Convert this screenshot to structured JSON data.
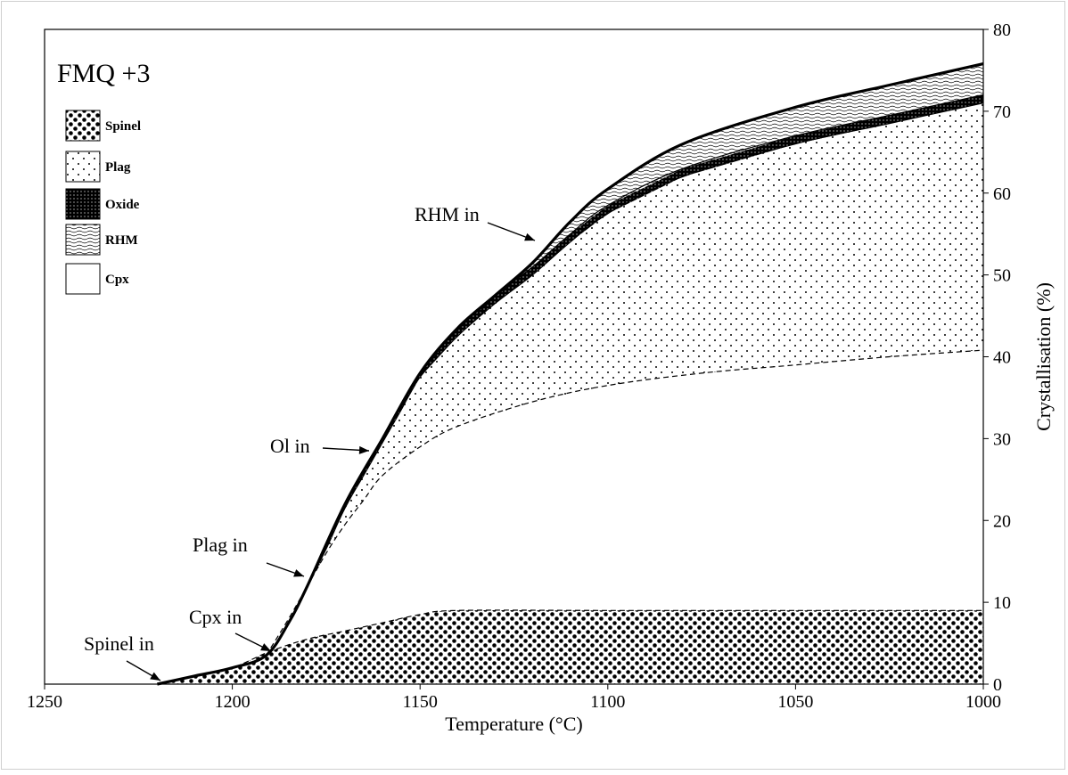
{
  "chart_data": {
    "type": "area",
    "title": "FMQ +3",
    "xlabel": "Temperature (°C)",
    "ylabel": "Crystallisation (%)",
    "xlim": [
      1250,
      1000
    ],
    "ylim": [
      0,
      80
    ],
    "x_reversed": true,
    "x_ticks": [
      "1250",
      "1200",
      "1150",
      "1100",
      "1050",
      "1000"
    ],
    "y_ticks": [
      "0",
      "10",
      "20",
      "30",
      "40",
      "50",
      "60",
      "70",
      "80"
    ],
    "legend_position": "top-left",
    "legend": [
      "Spinel",
      "Plag",
      "Oxide",
      "RHM",
      "Cpx"
    ],
    "series": [
      {
        "name": "Spinel",
        "pattern": "large dots",
        "x": [
          1220,
          1210,
          1200,
          1190,
          1180,
          1170,
          1160,
          1150,
          1140,
          1100,
          1050,
          1000
        ],
        "y": [
          0,
          1,
          2,
          4,
          5.5,
          6.5,
          7.5,
          8.5,
          9,
          9,
          9,
          9
        ]
      },
      {
        "name": "Cpx",
        "pattern": "white (area between Spinel and Plag)",
        "x": [
          1191,
          1185,
          1180,
          1175,
          1170,
          1165,
          1160,
          1150,
          1140,
          1120,
          1100,
          1075,
          1050,
          1025,
          1000
        ],
        "y": [
          3.5,
          8,
          12,
          16,
          19.5,
          22.5,
          25.5,
          29,
          31.5,
          34.5,
          36.5,
          38,
          39,
          40,
          40.8
        ]
      },
      {
        "name": "Plag",
        "pattern": "small dots",
        "x": [
          1180,
          1175,
          1170,
          1165,
          1160,
          1155,
          1150,
          1140,
          1130,
          1120,
          1110,
          1100,
          1080,
          1050,
          1025,
          1000
        ],
        "y": [
          12,
          16.5,
          21.5,
          25.5,
          29.5,
          33.5,
          37.5,
          42.5,
          46.5,
          50,
          54,
          57.5,
          62,
          66,
          68.5,
          71
        ]
      },
      {
        "name": "Oxide",
        "pattern": "black",
        "x": [
          1180,
          1170,
          1160,
          1150,
          1140,
          1130,
          1120,
          1110,
          1100,
          1080,
          1050,
          1025,
          1000
        ],
        "y": [
          12,
          22,
          30,
          38,
          43.5,
          47.5,
          51,
          55,
          58.5,
          63,
          67,
          69.5,
          72
        ]
      },
      {
        "name": "RHM",
        "pattern": "wavy lines",
        "x": [
          1180,
          1170,
          1160,
          1150,
          1140,
          1130,
          1120,
          1110,
          1100,
          1080,
          1050,
          1025,
          1000
        ],
        "y": [
          12,
          22,
          30,
          38,
          43.5,
          47.5,
          51.5,
          56.5,
          60.5,
          66,
          70.5,
          73.2,
          75.8
        ]
      }
    ],
    "annotations": [
      {
        "text": "Spinel in",
        "x": 1220,
        "y": 0
      },
      {
        "text": "Cpx in",
        "x": 1191,
        "y": 3.5
      },
      {
        "text": "Plag in",
        "x": 1180,
        "y": 12
      },
      {
        "text": "Ol in",
        "x": 1160,
        "y": 29.5
      },
      {
        "text": "RHM in",
        "x": 1120,
        "y": 52
      }
    ]
  }
}
